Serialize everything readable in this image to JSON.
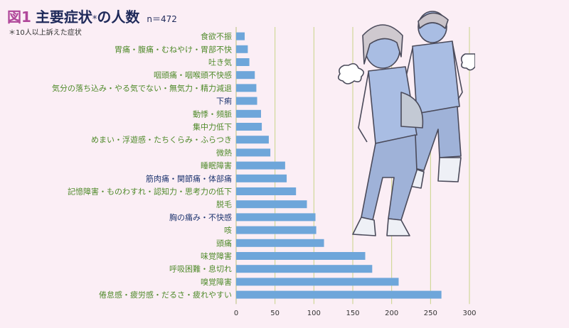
{
  "header": {
    "fig_label": "図1",
    "title": "主要症状",
    "title_mark": "*",
    "title_suffix": "の人数",
    "sample": "n＝472",
    "footnote": "＊10人以上訴えた症状"
  },
  "colors": {
    "bar": "#6ea6da",
    "grid": "#c9d488",
    "label_green": "#4f8a2a",
    "label_navy": "#1e3570",
    "background": "#fbeef5"
  },
  "chart_data": {
    "type": "bar",
    "orientation": "horizontal",
    "categories": [
      "食欲不振",
      "胃痛・腹痛・むねやけ・胃部不快",
      "吐き気",
      "咽頭痛・咽喉頭不快感",
      "気分の落ち込み・やる気でない・無気力・精力減退",
      "下痢",
      "動悸・頻脈",
      "集中力低下",
      "めまい・浮遊感・たちくらみ・ふらつき",
      "微熱",
      "睡眠障害",
      "筋肉痛・関節痛・体部痛",
      "記憶障害・ものわすれ・認知力・思考力の低下",
      "脱毛",
      "胸の痛み・不快感",
      "咳",
      "頭痛",
      "味覚障害",
      "呼吸困難・息切れ",
      "嗅覚障害",
      "倦怠感・疲労感・だるさ・疲れやすい"
    ],
    "values": [
      11,
      15,
      17,
      24,
      26,
      27,
      32,
      33,
      42,
      44,
      63,
      65,
      77,
      91,
      102,
      103,
      113,
      166,
      175,
      209,
      264
    ],
    "label_colors": [
      "green",
      "green",
      "green",
      "green",
      "green",
      "navy",
      "green",
      "green",
      "green",
      "green",
      "green",
      "navy",
      "green",
      "green",
      "navy",
      "green",
      "green",
      "green",
      "green",
      "green",
      "green"
    ],
    "x_ticks": [
      0,
      50,
      100,
      150,
      200,
      250,
      300
    ],
    "xlim": [
      0,
      300
    ],
    "grid": "vertical",
    "xlabel": "",
    "ylabel": ""
  }
}
